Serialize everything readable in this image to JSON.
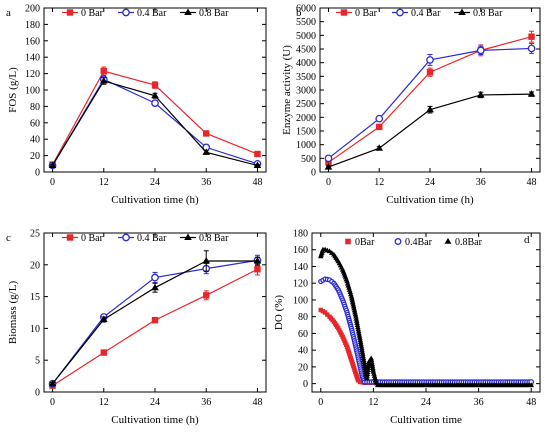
{
  "chart_data": [
    {
      "panel": "a",
      "type": "line",
      "xlabel": "Cultivation time (h)",
      "ylabel": "FOS (g/L)",
      "x": [
        0,
        12,
        24,
        36,
        48
      ],
      "xlim": [
        -2,
        50
      ],
      "ylim": [
        0,
        200
      ],
      "xticks": [
        0,
        12,
        24,
        36,
        48
      ],
      "yticks": [
        0,
        20,
        40,
        60,
        80,
        100,
        120,
        140,
        160,
        180,
        200
      ],
      "legend": "top",
      "series": [
        {
          "name": "0 Bar",
          "color": "#e8262a",
          "marker": "square",
          "values": [
            9,
            123,
            106,
            47,
            22
          ],
          "errors": [
            1,
            5,
            4,
            2,
            1
          ]
        },
        {
          "name": "0.4 Bar",
          "color": "#2b2bd6",
          "marker": "circle",
          "values": [
            8,
            113,
            84,
            30,
            10
          ],
          "errors": [
            1,
            4,
            3,
            2,
            1
          ]
        },
        {
          "name": "0.8 Bar",
          "color": "#000000",
          "marker": "triangle",
          "values": [
            8,
            111,
            93,
            24,
            8
          ],
          "errors": [
            1,
            4,
            3,
            2,
            1
          ]
        }
      ]
    },
    {
      "panel": "b",
      "type": "line",
      "xlabel": "Cultivation time (h)",
      "ylabel": "Enzyme activity (U)",
      "x": [
        0,
        12,
        24,
        36,
        48
      ],
      "xlim": [
        -2,
        50
      ],
      "ylim": [
        0,
        6000
      ],
      "xticks": [
        0,
        12,
        24,
        36,
        48
      ],
      "yticks": [
        0,
        500,
        1000,
        1500,
        2000,
        2500,
        3000,
        3500,
        4000,
        4500,
        5000,
        5500,
        6000
      ],
      "legend": "top",
      "series": [
        {
          "name": "0 Bar",
          "color": "#e8262a",
          "marker": "square",
          "values": [
            350,
            1650,
            3650,
            4450,
            4950
          ],
          "errors": [
            60,
            80,
            150,
            200,
            200
          ]
        },
        {
          "name": "0.4 Bar",
          "color": "#2b2bd6",
          "marker": "circle",
          "values": [
            500,
            1950,
            4100,
            4450,
            4520
          ],
          "errors": [
            60,
            80,
            200,
            150,
            180
          ]
        },
        {
          "name": "0.8 Bar",
          "color": "#000000",
          "marker": "triangle",
          "values": [
            180,
            870,
            2280,
            2820,
            2850
          ],
          "errors": [
            40,
            60,
            120,
            100,
            80
          ]
        }
      ]
    },
    {
      "panel": "c",
      "type": "line",
      "xlabel": "Cultivation time (h)",
      "ylabel": "Biomass (g/L)",
      "x": [
        0,
        12,
        24,
        36,
        48
      ],
      "xlim": [
        -2,
        50
      ],
      "ylim": [
        0,
        25
      ],
      "xticks": [
        0,
        12,
        24,
        36,
        48
      ],
      "yticks": [
        0,
        5,
        10,
        15,
        20,
        25
      ],
      "legend": "top",
      "series": [
        {
          "name": "0 Bar",
          "color": "#e8262a",
          "marker": "square",
          "values": [
            1.0,
            6.2,
            11.3,
            15.2,
            19.3
          ],
          "errors": [
            0.2,
            0.2,
            0.4,
            0.7,
            0.9
          ]
        },
        {
          "name": "0.4 Bar",
          "color": "#2b2bd6",
          "marker": "circle",
          "values": [
            1.3,
            11.8,
            18.0,
            19.4,
            20.7
          ],
          "errors": [
            0.2,
            0.4,
            0.8,
            0.8,
            0.8
          ]
        },
        {
          "name": "0.8 Bar",
          "color": "#000000",
          "marker": "triangle",
          "values": [
            1.3,
            11.4,
            16.4,
            20.6,
            20.6
          ],
          "errors": [
            0.2,
            0.4,
            0.7,
            1.6,
            0.6
          ]
        }
      ]
    },
    {
      "panel": "d",
      "type": "scatter",
      "xlabel": "Cultivation time",
      "ylabel": "DO (%)",
      "xlim": [
        -2,
        50
      ],
      "ylim": [
        -10,
        180
      ],
      "xticks": [
        0,
        12,
        24,
        36,
        48
      ],
      "yticks": [
        0,
        20,
        40,
        60,
        80,
        100,
        120,
        140,
        160,
        180
      ],
      "legend": "top",
      "series": [
        {
          "name": "0Bar",
          "color": "#e8262a",
          "marker": "square",
          "points": [
            [
              0,
              88
            ],
            [
              1,
              85
            ],
            [
              2,
              80
            ],
            [
              3,
              74
            ],
            [
              4,
              66
            ],
            [
              5,
              56
            ],
            [
              6,
              44
            ],
            [
              7,
              28
            ],
            [
              8,
              12
            ],
            [
              8.5,
              4
            ],
            [
              9,
              2
            ],
            [
              10,
              1
            ],
            [
              12,
              1
            ],
            [
              16,
              1
            ],
            [
              20,
              1
            ],
            [
              24,
              1
            ],
            [
              28,
              1
            ],
            [
              32,
              1
            ],
            [
              36,
              1
            ],
            [
              40,
              1
            ],
            [
              44,
              1
            ],
            [
              48,
              1
            ]
          ]
        },
        {
          "name": "0.4Bar",
          "color": "#2b2bd6",
          "marker": "circle",
          "points": [
            [
              0,
              122
            ],
            [
              1,
              125
            ],
            [
              2,
              124
            ],
            [
              3,
              120
            ],
            [
              4,
              112
            ],
            [
              5,
              100
            ],
            [
              6,
              85
            ],
            [
              7,
              66
            ],
            [
              8,
              44
            ],
            [
              9,
              20
            ],
            [
              9.5,
              8
            ],
            [
              10,
              2
            ],
            [
              11,
              2
            ],
            [
              12,
              2
            ],
            [
              16,
              2
            ],
            [
              20,
              2
            ],
            [
              24,
              2
            ],
            [
              28,
              2
            ],
            [
              32,
              2
            ],
            [
              36,
              2
            ],
            [
              40,
              2
            ],
            [
              44,
              2
            ],
            [
              48,
              2
            ]
          ]
        },
        {
          "name": "0.8Bar",
          "color": "#000000",
          "marker": "triangle",
          "points": [
            [
              0,
              152
            ],
            [
              0.5,
              160
            ],
            [
              1,
              160
            ],
            [
              2,
              158
            ],
            [
              3,
              154
            ],
            [
              4,
              146
            ],
            [
              5,
              136
            ],
            [
              6,
              122
            ],
            [
              7,
              104
            ],
            [
              8,
              80
            ],
            [
              9,
              52
            ],
            [
              9.8,
              28
            ],
            [
              10.5,
              6
            ],
            [
              11,
              26
            ],
            [
              11.5,
              30
            ],
            [
              12,
              14
            ],
            [
              12.5,
              4
            ],
            [
              13,
              -2
            ],
            [
              16,
              -2
            ],
            [
              20,
              -2
            ],
            [
              24,
              -2
            ],
            [
              28,
              -2
            ],
            [
              32,
              -2
            ],
            [
              36,
              -2
            ],
            [
              40,
              -2
            ],
            [
              44,
              -2
            ],
            [
              48,
              -2
            ]
          ]
        }
      ]
    }
  ]
}
